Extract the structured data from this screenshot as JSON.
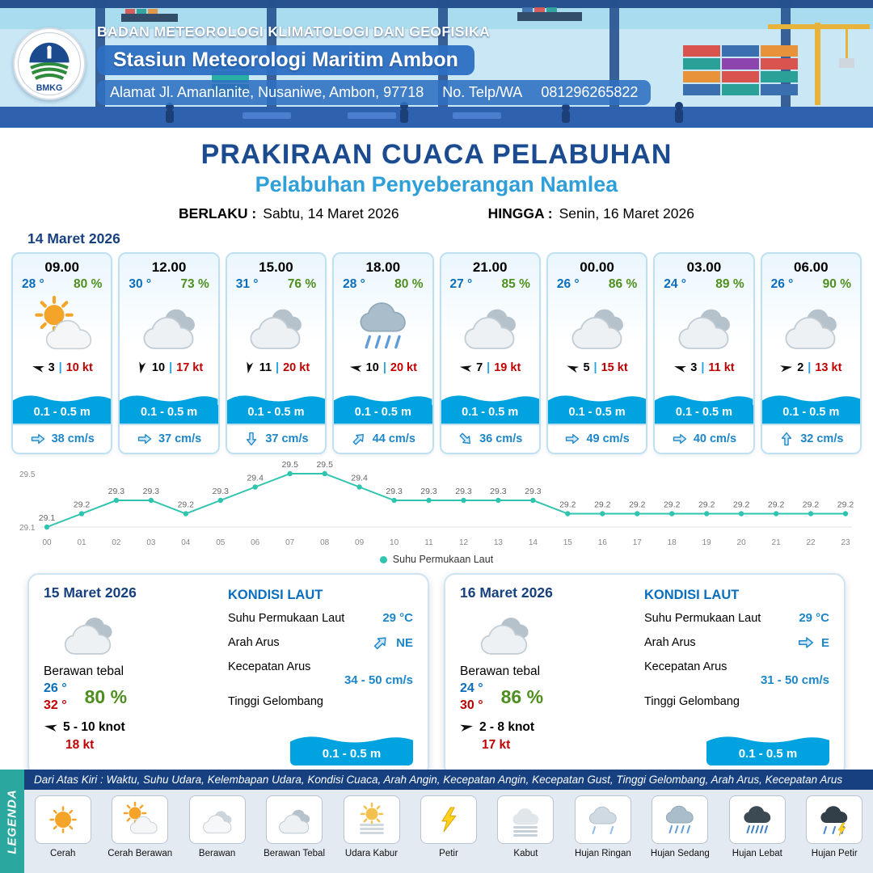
{
  "header": {
    "org": "BADAN METEOROLOGI KLIMATOLOGI DAN GEOFISIKA",
    "station": "Stasiun Meteorologi Maritim Ambon",
    "address": "Alamat Jl. Amanlanite, Nusaniwe, Ambon, 97718",
    "phone_label": "No. Telp/WA",
    "phone": "081296265822",
    "logo": "BMKG"
  },
  "title": {
    "main": "PRAKIRAAN CUACA PELABUHAN",
    "sub": "Pelabuhan Penyeberangan Namlea",
    "valid_from_label": "BERLAKU :",
    "valid_from": "Sabtu, 14 Maret 2026",
    "valid_to_label": "HINGGA :",
    "valid_to": "Senin, 16 Maret 2026"
  },
  "forecast": {
    "date": "14 Maret 2026",
    "pipe": "|",
    "cards": [
      {
        "time": "09.00",
        "temp": "28 °",
        "rh": "80 %",
        "icon": "cerah-berawan",
        "wind_rot": 195,
        "wind": "3",
        "gust": "10 kt",
        "wave": "0.1 - 0.5 m",
        "cur_rot": 0,
        "current": "38 cm/s"
      },
      {
        "time": "12.00",
        "temp": "30 °",
        "rh": "73 %",
        "icon": "berawan-tebal",
        "wind_rot": 100,
        "wind": "10",
        "gust": "17 kt",
        "wave": "0.1 - 0.5 m",
        "cur_rot": 0,
        "current": "37 cm/s"
      },
      {
        "time": "15.00",
        "temp": "31 °",
        "rh": "76 %",
        "icon": "berawan-tebal",
        "wind_rot": 100,
        "wind": "11",
        "gust": "20 kt",
        "wave": "0.1 - 0.5 m",
        "cur_rot": 90,
        "current": "37 cm/s"
      },
      {
        "time": "18.00",
        "temp": "28 °",
        "rh": "80 %",
        "icon": "hujan-sedang",
        "wind_rot": 190,
        "wind": "10",
        "gust": "20 kt",
        "wave": "0.1 - 0.5 m",
        "cur_rot": -45,
        "current": "44 cm/s"
      },
      {
        "time": "21.00",
        "temp": "27 °",
        "rh": "85 %",
        "icon": "berawan-tebal",
        "wind_rot": 190,
        "wind": "7",
        "gust": "19 kt",
        "wave": "0.1 - 0.5 m",
        "cur_rot": 45,
        "current": "36 cm/s"
      },
      {
        "time": "00.00",
        "temp": "26 °",
        "rh": "86 %",
        "icon": "berawan-tebal",
        "wind_rot": 200,
        "wind": "5",
        "gust": "15 kt",
        "wave": "0.1 - 0.5 m",
        "cur_rot": 0,
        "current": "49 cm/s"
      },
      {
        "time": "03.00",
        "temp": "24 °",
        "rh": "89 %",
        "icon": "berawan-tebal",
        "wind_rot": 195,
        "wind": "3",
        "gust": "11 kt",
        "wave": "0.1 - 0.5 m",
        "cur_rot": 0,
        "current": "40 cm/s"
      },
      {
        "time": "06.00",
        "temp": "26 °",
        "rh": "90 %",
        "icon": "berawan-tebal",
        "wind_rot": 350,
        "wind": "2",
        "gust": "13 kt",
        "wave": "0.1 - 0.5 m",
        "cur_rot": -90,
        "current": "32 cm/s"
      }
    ]
  },
  "chart_data": {
    "type": "line",
    "legend": "Suhu Permukaan Laut",
    "x": [
      "00",
      "01",
      "02",
      "03",
      "04",
      "05",
      "06",
      "07",
      "08",
      "09",
      "10",
      "11",
      "12",
      "13",
      "14",
      "15",
      "16",
      "17",
      "18",
      "19",
      "20",
      "21",
      "22",
      "23"
    ],
    "values": [
      29.1,
      29.2,
      29.3,
      29.3,
      29.2,
      29.3,
      29.4,
      29.5,
      29.5,
      29.4,
      29.3,
      29.3,
      29.3,
      29.3,
      29.3,
      29.2,
      29.2,
      29.2,
      29.2,
      29.2,
      29.2,
      29.2,
      29.2,
      29.2
    ],
    "ylim": [
      29.1,
      29.5
    ],
    "yticks": [
      "29.5",
      "29.1"
    ],
    "line_color": "#2fc4ad",
    "grid": false,
    "legend_position": "bottom-center"
  },
  "daily": [
    {
      "date": "15 Maret 2026",
      "icon": "berawan-tebal",
      "condition": "Berawan tebal",
      "temp_min": "26 °",
      "temp_max": "32 °",
      "rh": "80 %",
      "wind_rot": 190,
      "wind": "5  - 10 knot",
      "gust": "18 kt",
      "sea_title": "KONDISI LAUT",
      "sst_label": "Suhu Permukaan Laut",
      "sst": "29 °C",
      "current_dir_label": "Arah Arus",
      "current_dir": "NE",
      "current_rot": -45,
      "current_speed_label": "Kecepatan Arus",
      "current_speed": "34 - 50 cm/s",
      "wave_label": "Tinggi Gelombang",
      "wave": "0.1 - 0.5 m"
    },
    {
      "date": "16 Maret 2026",
      "icon": "berawan-tebal",
      "condition": "Berawan tebal",
      "temp_min": "24 °",
      "temp_max": "30 °",
      "rh": "86 %",
      "wind_rot": 350,
      "wind": "2  - 8 knot",
      "gust": "17 kt",
      "sea_title": "KONDISI LAUT",
      "sst_label": "Suhu Permukaan Laut",
      "sst": "29 °C",
      "current_dir_label": "Arah Arus",
      "current_dir": "E",
      "current_rot": 0,
      "current_speed_label": "Kecepatan Arus",
      "current_speed": "31 - 50 cm/s",
      "wave_label": "Tinggi Gelombang",
      "wave": "0.1 - 0.5 m"
    }
  ],
  "legend_bar": {
    "side": "LEGENDA",
    "note": "Dari Atas Kiri : Waktu, Suhu Udara, Kelembapan Udara, Kondisi Cuaca, Arah Angin, Kecepatan Angin, Kecepatan Gust, Tinggi Gelombang, Arah Arus, Kecepatan Arus",
    "items": [
      {
        "label": "Cerah",
        "icon": "cerah"
      },
      {
        "label": "Cerah Berawan",
        "icon": "cerah-berawan"
      },
      {
        "label": "Berawan",
        "icon": "berawan"
      },
      {
        "label": "Berawan Tebal",
        "icon": "berawan-tebal"
      },
      {
        "label": "Udara Kabur",
        "icon": "udara-kabur"
      },
      {
        "label": "Petir",
        "icon": "petir"
      },
      {
        "label": "Kabut",
        "icon": "kabut"
      },
      {
        "label": "Hujan Ringan",
        "icon": "hujan-ringan"
      },
      {
        "label": "Hujan Sedang",
        "icon": "hujan-sedang"
      },
      {
        "label": "Hujan Lebat",
        "icon": "hujan-lebat"
      },
      {
        "label": "Hujan Petir",
        "icon": "hujan-petir"
      }
    ]
  },
  "colors": {
    "dark_blue": "#16407f",
    "title_blue": "#1b4a8f",
    "subtitle_blue": "#2e9fd8",
    "temp_blue": "#0a6ebd",
    "rh_green": "#4f8f1f",
    "gust_red": "#c00000",
    "wave_blue": "#00a3e0",
    "current_blue": "#1c86c8",
    "chart_teal": "#2fc4ad",
    "legend_side_teal": "#2aa79e"
  }
}
